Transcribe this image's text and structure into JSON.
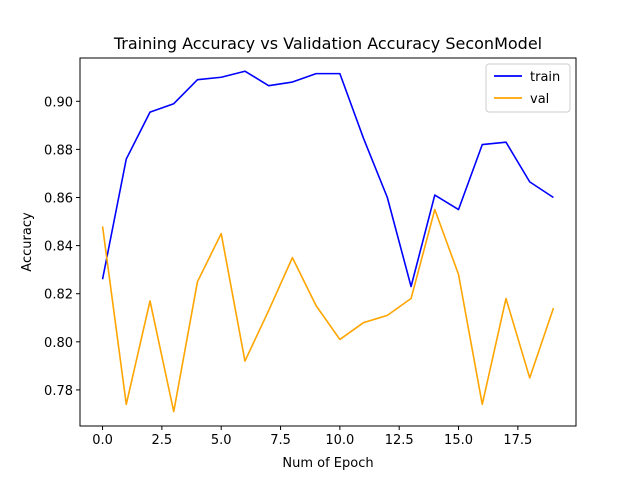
{
  "chart_data": {
    "type": "line",
    "title": "Training Accuracy vs Validation Accuracy SeconModel",
    "xlabel": "Num of Epoch",
    "ylabel": "Accuracy",
    "xlim": [
      -0.95,
      19.95
    ],
    "ylim": [
      0.765,
      0.918
    ],
    "xticks": [
      0.0,
      2.5,
      5.0,
      7.5,
      10.0,
      12.5,
      15.0,
      17.5
    ],
    "xtick_labels": [
      "0.0",
      "2.5",
      "5.0",
      "7.5",
      "10.0",
      "12.5",
      "15.0",
      "17.5"
    ],
    "yticks": [
      0.78,
      0.8,
      0.82,
      0.84,
      0.86,
      0.88,
      0.9
    ],
    "ytick_labels": [
      "0.78",
      "0.80",
      "0.82",
      "0.84",
      "0.86",
      "0.88",
      "0.90"
    ],
    "grid": false,
    "legend_position": "top-right",
    "x": [
      0,
      1,
      2,
      3,
      4,
      5,
      6,
      7,
      8,
      9,
      10,
      11,
      12,
      13,
      14,
      15,
      16,
      17,
      18,
      19
    ],
    "series": [
      {
        "name": "train",
        "color": "#0000ff",
        "values": [
          0.826,
          0.876,
          0.8955,
          0.899,
          0.909,
          0.91,
          0.9125,
          0.9065,
          0.908,
          0.9115,
          0.9115,
          0.8845,
          0.86,
          0.823,
          0.861,
          0.855,
          0.882,
          0.883,
          0.8665,
          0.86
        ]
      },
      {
        "name": "val",
        "color": "#ffa500",
        "values": [
          0.848,
          0.774,
          0.817,
          0.771,
          0.825,
          0.845,
          0.792,
          0.813,
          0.835,
          0.815,
          0.801,
          0.808,
          0.811,
          0.818,
          0.855,
          0.828,
          0.774,
          0.818,
          0.785,
          0.814
        ]
      }
    ]
  }
}
